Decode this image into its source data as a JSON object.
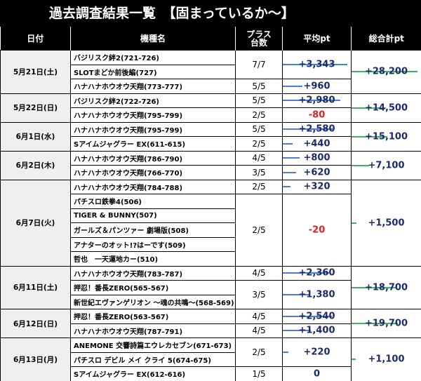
{
  "title": "過去調査結果一覧　【固まっているか～】",
  "headers": [
    "日付",
    "機種名",
    "プラス\n台数",
    "平均pt",
    "総合計pt"
  ],
  "avg_bar_color": "#4a7fd4",
  "total_bar_color": "#3fb35f",
  "negative_color": "#e02020",
  "groups": [
    {
      "date": "5月21日(土)",
      "total": 28200,
      "total_label": "+28,200",
      "entries": [
        {
          "machines": [
            "バジリスク絆2(721-726)",
            "SLOTまどか前後編(727)"
          ],
          "plus": "7/7",
          "avg": 3343,
          "avg_label": "+3,343"
        },
        {
          "machines": [
            "ハナハナホウオウ天翔(773-777)"
          ],
          "plus": "5/5",
          "avg": 960,
          "avg_label": "+960"
        }
      ]
    },
    {
      "date": "5月22日(日)",
      "total": 14500,
      "total_label": "+14,500",
      "entries": [
        {
          "machines": [
            "バジリスク絆2(722-726)"
          ],
          "plus": "5/5",
          "avg": 2980,
          "avg_label": "+2,980"
        },
        {
          "machines": [
            "ハナハナホウオウ天翔(795-799)"
          ],
          "plus": "2/5",
          "avg": -80,
          "avg_label": "-80"
        }
      ]
    },
    {
      "date": "6月1日(水)",
      "total": 15100,
      "total_label": "+15,100",
      "entries": [
        {
          "machines": [
            "ハナハナホウオウ天翔(795-799)"
          ],
          "plus": "5/5",
          "avg": 2580,
          "avg_label": "+2,580"
        },
        {
          "machines": [
            "Sアイムジャグラー EX(611-615)"
          ],
          "plus": "2/5",
          "avg": 440,
          "avg_label": "+440"
        }
      ]
    },
    {
      "date": "6月2日(木)",
      "total": 7100,
      "total_label": "+7,100",
      "entries": [
        {
          "machines": [
            "ハナハナホウオウ天翔(786-790)"
          ],
          "plus": "4/5",
          "avg": 800,
          "avg_label": "+800"
        },
        {
          "machines": [
            "ハナハナホウオウ天翔(766-770)"
          ],
          "plus": "3/5",
          "avg": 620,
          "avg_label": "+620"
        }
      ]
    },
    {
      "date": "6月7日(火)",
      "total": 1500,
      "total_label": "+1,500",
      "entries": [
        {
          "machines": [
            "ハナハナホウオウ天翔(784-788)"
          ],
          "plus": "2/5",
          "avg": 320,
          "avg_label": "+320"
        },
        {
          "machines": [
            "パチスロ鉄拳4(506)",
            "TIGER & BUNNY(507)",
            "ガールズ＆パンツァー 劇場版(508)",
            "アナターのオット!?はーです(509)",
            "哲也　一天運地カー(510)"
          ],
          "plus": "2/5",
          "avg": -20,
          "avg_label": "-20"
        }
      ]
    },
    {
      "date": "6月11日(土)",
      "total": 18700,
      "total_label": "+18,700",
      "entries": [
        {
          "machines": [
            "ハナハナホウオウ天翔(783-787)"
          ],
          "plus": "4/5",
          "avg": 2360,
          "avg_label": "+2,360"
        },
        {
          "machines": [
            "押忍！番長ZERO(565-567)",
            "新世紀エヴァンゲリオン ～魂の共鳴～(568-569)"
          ],
          "plus": "3/5",
          "avg": 1380,
          "avg_label": "+1,380"
        }
      ]
    },
    {
      "date": "6月12日(日)",
      "total": 19700,
      "total_label": "+19,700",
      "entries": [
        {
          "machines": [
            "押忍！番長ZERO(563-567)"
          ],
          "plus": "4/5",
          "avg": 2540,
          "avg_label": "+2,540"
        },
        {
          "machines": [
            "ハナハナホウオウ天翔(787-791)"
          ],
          "plus": "4/5",
          "avg": 1400,
          "avg_label": "+1,400"
        }
      ]
    },
    {
      "date": "6月13日(月)",
      "total": 1100,
      "total_label": "+1,100",
      "entries": [
        {
          "machines": [
            "ANEMONE 交響詩篇エウレカセブン(671-673)",
            "パチスロ デビル メイ クライ 5(674-675)"
          ],
          "plus": "2/5",
          "avg": 220,
          "avg_label": "+220"
        },
        {
          "machines": [
            "Sアイムジャグラー EX(612-616)"
          ],
          "plus": "1/5",
          "avg": 0,
          "avg_label": "0"
        }
      ]
    }
  ]
}
